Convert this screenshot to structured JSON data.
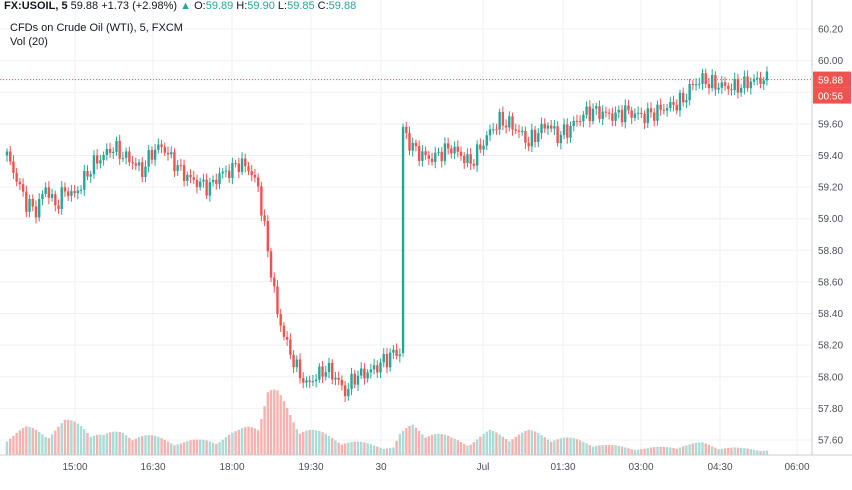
{
  "legend": {
    "symbol": "FX:USOIL, 5",
    "last": "59.88",
    "change": "+1.73 (+2.98%)",
    "arrow": "▲",
    "o_label": "O:",
    "o_val": "59.89",
    "h_label": "H:",
    "h_val": "59.90",
    "l_label": "L:",
    "l_val": "59.85",
    "c_label": "C:",
    "c_val": "59.88"
  },
  "subtitle": "CFDs on Crude Oil (WTI), 5, FXCM",
  "volume_label": "Vol (20)",
  "price_badge": {
    "price": "59.88",
    "countdown": "00:56"
  },
  "colors": {
    "up": "#26a69a",
    "down": "#ef5350",
    "up_vol": "#a7dcd7",
    "down_vol": "#f7b2b0",
    "grid": "#eef0f3",
    "price_line": "#ef5350"
  },
  "chart_data": {
    "type": "candlestick",
    "y_ticks": [
      57.6,
      57.8,
      58.0,
      58.2,
      58.4,
      58.6,
      58.8,
      59.0,
      59.2,
      59.4,
      59.6,
      59.8,
      60.0,
      60.2
    ],
    "x_ticks": [
      "15:00",
      "16:30",
      "18:00",
      "19:30",
      "30",
      "Jul",
      "01:30",
      "03:00",
      "04:30",
      "06:00"
    ],
    "last_price": 59.88,
    "close_path": [
      [
        0,
        59.4
      ],
      [
        3,
        59.25
      ],
      [
        6,
        59.1
      ],
      [
        9,
        59.05
      ],
      [
        12,
        59.2
      ],
      [
        15,
        59.08
      ],
      [
        18,
        59.18
      ],
      [
        21,
        59.15
      ],
      [
        24,
        59.25
      ],
      [
        27,
        59.35
      ],
      [
        30,
        59.4
      ],
      [
        33,
        59.45
      ],
      [
        36,
        59.4
      ],
      [
        39,
        59.36
      ],
      [
        42,
        59.3
      ],
      [
        45,
        59.42
      ],
      [
        48,
        59.46
      ],
      [
        51,
        59.38
      ],
      [
        54,
        59.3
      ],
      [
        57,
        59.25
      ],
      [
        60,
        59.22
      ],
      [
        63,
        59.2
      ],
      [
        66,
        59.28
      ],
      [
        69,
        59.3
      ],
      [
        72,
        59.35
      ],
      [
        75,
        59.32
      ],
      [
        78,
        59.2
      ],
      [
        81,
        58.8
      ],
      [
        84,
        58.4
      ],
      [
        87,
        58.2
      ],
      [
        90,
        58.05
      ],
      [
        93,
        57.95
      ],
      [
        96,
        58.0
      ],
      [
        99,
        58.05
      ],
      [
        102,
        58.0
      ],
      [
        105,
        57.9
      ],
      [
        108,
        58.0
      ],
      [
        111,
        58.02
      ],
      [
        114,
        58.05
      ],
      [
        117,
        58.1
      ],
      [
        120,
        58.15
      ],
      [
        122,
        58.15
      ],
      [
        123,
        59.55
      ],
      [
        126,
        59.45
      ],
      [
        129,
        59.4
      ],
      [
        132,
        59.38
      ],
      [
        135,
        59.42
      ],
      [
        138,
        59.45
      ],
      [
        141,
        59.4
      ],
      [
        144,
        59.35
      ],
      [
        147,
        59.45
      ],
      [
        150,
        59.55
      ],
      [
        153,
        59.62
      ],
      [
        156,
        59.6
      ],
      [
        159,
        59.55
      ],
      [
        162,
        59.48
      ],
      [
        165,
        59.55
      ],
      [
        168,
        59.6
      ],
      [
        171,
        59.52
      ],
      [
        174,
        59.56
      ],
      [
        177,
        59.62
      ],
      [
        180,
        59.67
      ],
      [
        183,
        59.68
      ],
      [
        186,
        59.66
      ],
      [
        189,
        59.65
      ],
      [
        192,
        59.68
      ],
      [
        195,
        59.66
      ],
      [
        198,
        59.65
      ],
      [
        201,
        59.67
      ],
      [
        204,
        59.7
      ],
      [
        207,
        59.72
      ],
      [
        210,
        59.75
      ],
      [
        213,
        59.85
      ],
      [
        216,
        59.88
      ],
      [
        219,
        59.85
      ],
      [
        222,
        59.84
      ],
      [
        225,
        59.83
      ],
      [
        228,
        59.84
      ],
      [
        231,
        59.87
      ],
      [
        234,
        59.88
      ],
      [
        236,
        59.88
      ]
    ],
    "volume_profile": [
      [
        0,
        0.3
      ],
      [
        6,
        0.4
      ],
      [
        12,
        0.35
      ],
      [
        18,
        0.5
      ],
      [
        24,
        0.45
      ],
      [
        30,
        0.3
      ],
      [
        36,
        0.35
      ],
      [
        42,
        0.3
      ],
      [
        48,
        0.25
      ],
      [
        54,
        0.2
      ],
      [
        60,
        0.22
      ],
      [
        66,
        0.25
      ],
      [
        72,
        0.35
      ],
      [
        78,
        0.55
      ],
      [
        81,
        1.0
      ],
      [
        84,
        0.9
      ],
      [
        87,
        0.7
      ],
      [
        90,
        0.5
      ],
      [
        96,
        0.35
      ],
      [
        102,
        0.25
      ],
      [
        108,
        0.2
      ],
      [
        114,
        0.15
      ],
      [
        120,
        0.12
      ],
      [
        122,
        0.3
      ],
      [
        126,
        0.45
      ],
      [
        132,
        0.35
      ],
      [
        138,
        0.25
      ],
      [
        144,
        0.2
      ],
      [
        150,
        0.35
      ],
      [
        156,
        0.3
      ],
      [
        162,
        0.35
      ],
      [
        168,
        0.3
      ],
      [
        174,
        0.25
      ],
      [
        180,
        0.2
      ],
      [
        186,
        0.15
      ],
      [
        192,
        0.12
      ],
      [
        198,
        0.1
      ],
      [
        204,
        0.12
      ],
      [
        210,
        0.15
      ],
      [
        216,
        0.18
      ],
      [
        222,
        0.12
      ],
      [
        228,
        0.1
      ],
      [
        236,
        0.08
      ]
    ]
  }
}
